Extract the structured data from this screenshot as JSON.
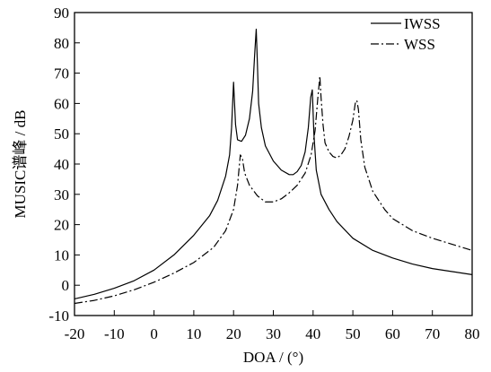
{
  "chart_data": {
    "type": "line",
    "xlabel": "DOA / (°)",
    "ylabel": "MUSIC谱峰 / dB",
    "xlim": [
      -20,
      80
    ],
    "ylim": [
      -10,
      90
    ],
    "x_ticks": [
      -20,
      -10,
      0,
      10,
      20,
      30,
      40,
      50,
      60,
      70,
      80
    ],
    "y_ticks": [
      -10,
      0,
      10,
      20,
      30,
      40,
      50,
      60,
      70,
      80,
      90
    ],
    "grid": false,
    "legend_position": "top-right",
    "series": [
      {
        "name": "IWSS",
        "style": "solid",
        "color": "#000000",
        "x": [
          -20,
          -15,
          -10,
          -5,
          0,
          5,
          10,
          14,
          16,
          18,
          19,
          19.5,
          20,
          20.5,
          21,
          22,
          23,
          24,
          24.8,
          25.3,
          25.7,
          26,
          26.3,
          27,
          28,
          30,
          32,
          34,
          35,
          36,
          37,
          38,
          38.8,
          39.4,
          39.8,
          40.2,
          40.8,
          42,
          44,
          46,
          50,
          55,
          60,
          65,
          70,
          75,
          80
        ],
        "y": [
          -4.5,
          -3,
          -1,
          1.5,
          5,
          10,
          16.5,
          23,
          28,
          36,
          43,
          52,
          67,
          53,
          48,
          47.5,
          49.5,
          55,
          64,
          76,
          84.5,
          73,
          60,
          52,
          46,
          41,
          38,
          36.5,
          36.5,
          37.5,
          39.5,
          44,
          52,
          62,
          64.5,
          50,
          38,
          30,
          25,
          21,
          15.5,
          11.5,
          9,
          7,
          5.5,
          4.5,
          3.5
        ]
      },
      {
        "name": "WSS",
        "style": "dashdot",
        "color": "#000000",
        "x": [
          -20,
          -15,
          -10,
          -5,
          0,
          5,
          10,
          15,
          18,
          20,
          21,
          21.7,
          22.2,
          22.8,
          24,
          26,
          28,
          30,
          32,
          34,
          36,
          38,
          39.5,
          40.5,
          41.2,
          41.7,
          42,
          42.5,
          43,
          44,
          45,
          46,
          47,
          48,
          49,
          50,
          50.6,
          51,
          51.4,
          52,
          53,
          55,
          58,
          60,
          65,
          70,
          75,
          80
        ],
        "y": [
          -6,
          -5,
          -3.5,
          -1.5,
          1,
          4,
          7.5,
          12.5,
          18,
          25,
          33,
          43,
          42,
          37,
          33,
          29.5,
          27.5,
          27.5,
          28.5,
          30.5,
          33,
          37,
          43,
          51,
          62,
          69,
          62,
          53,
          47,
          44,
          42.5,
          42,
          43,
          45,
          49,
          54.5,
          60,
          61,
          58,
          48,
          39,
          31,
          25,
          22,
          18,
          15.5,
          13.5,
          11.5
        ]
      }
    ]
  }
}
